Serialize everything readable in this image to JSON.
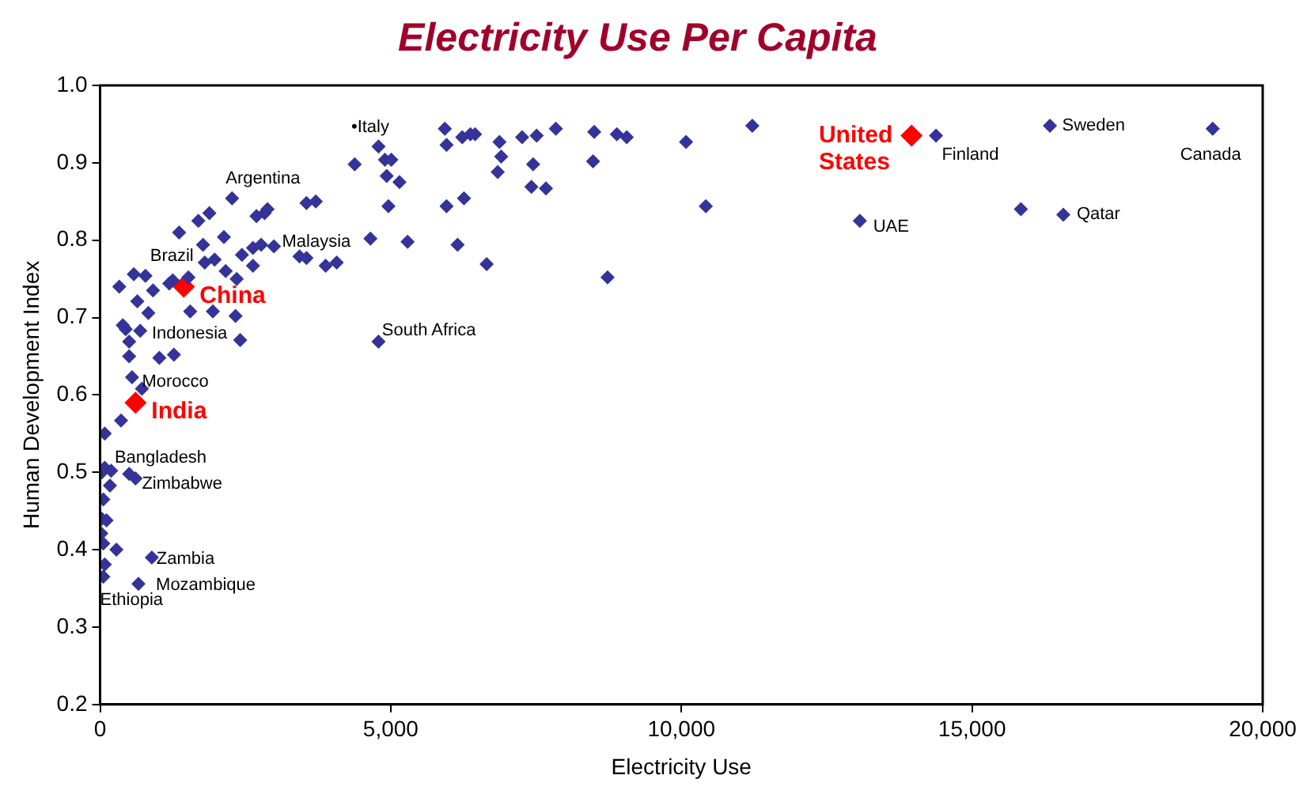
{
  "chart_data": {
    "type": "scatter",
    "title": "Electricity Use Per Capita",
    "xlabel": "Electricity Use",
    "ylabel": "Human Development Index",
    "xlim": [
      0,
      20000
    ],
    "xticks": [
      0,
      {
        "value": 5000,
        "label": "5,000"
      },
      {
        "value": 10000,
        "label": "10,000"
      },
      {
        "value": 15000,
        "label": "15,000"
      },
      {
        "value": 20000,
        "label": "20,000"
      }
    ],
    "ylim": [
      0.2,
      1
    ],
    "yticks": [
      0.2,
      0.3,
      0.4,
      0.5,
      0.6,
      0.7,
      0.8,
      0.9,
      {
        "value": 1,
        "label": "1.0"
      }
    ],
    "legend": false,
    "marker": "diamond",
    "series": [
      {
        "color": "#333399",
        "x": [
          5930,
          5960,
          6230,
          6370,
          6450,
          6870,
          6900,
          6840,
          7260,
          7510,
          7450,
          7420,
          7670,
          7840,
          8500,
          8480,
          8890,
          9060,
          10080,
          11220,
          10420,
          4380,
          4790,
          4900,
          5010,
          4930,
          5150,
          4960,
          5960,
          6260,
          4650,
          5290,
          6150,
          6650,
          8730,
          4070,
          2270,
          1880,
          1690,
          1360,
          2130,
          1770,
          2690,
          2830,
          2880,
          3550,
          3710,
          2440,
          2630,
          2770,
          2990,
          1970,
          1800,
          2160,
          2350,
          2630,
          3430,
          3550,
          3880,
          1520,
          1250,
          1190,
          780,
          580,
          330,
          910,
          640,
          830,
          1550,
          1940,
          2330,
          2410,
          390,
          440,
          690,
          500,
          500,
          1020,
          1270,
          550,
          720,
          80,
          360,
          30,
          80,
          190,
          170,
          500,
          610,
          55,
          30,
          110,
          20,
          55,
          280,
          80,
          55,
          890,
          660,
          14380,
          16340,
          19140,
          16570,
          15840,
          13070,
          4790
        ],
        "values": [
          0.944,
          0.923,
          0.933,
          0.937,
          0.937,
          0.927,
          0.908,
          0.888,
          0.933,
          0.935,
          0.898,
          0.869,
          0.867,
          0.944,
          0.94,
          0.902,
          0.937,
          0.933,
          0.927,
          0.948,
          0.844,
          0.898,
          0.921,
          0.904,
          0.904,
          0.883,
          0.875,
          0.844,
          0.844,
          0.854,
          0.802,
          0.798,
          0.794,
          0.769,
          0.752,
          0.771,
          0.854,
          0.835,
          0.825,
          0.81,
          0.804,
          0.794,
          0.831,
          0.835,
          0.84,
          0.848,
          0.85,
          0.781,
          0.79,
          0.794,
          0.792,
          0.775,
          0.771,
          0.76,
          0.75,
          0.767,
          0.779,
          0.777,
          0.767,
          0.752,
          0.748,
          0.744,
          0.754,
          0.756,
          0.74,
          0.735,
          0.721,
          0.706,
          0.708,
          0.708,
          0.702,
          0.671,
          0.69,
          0.685,
          0.683,
          0.669,
          0.65,
          0.648,
          0.652,
          0.623,
          0.608,
          0.55,
          0.567,
          0.5,
          0.506,
          0.502,
          0.483,
          0.498,
          0.492,
          0.465,
          0.44,
          0.438,
          0.421,
          0.408,
          0.4,
          0.381,
          0.365,
          0.39,
          0.356,
          0.935,
          0.948,
          0.944,
          0.833,
          0.84,
          0.825,
          0.669
        ]
      },
      {
        "color": "#ff0000",
        "x": [
          1440,
          610,
          13960
        ],
        "values": [
          0.74,
          0.59,
          0.935
        ],
        "value_labels": [
          "China",
          "India",
          "United States"
        ]
      }
    ],
    "annotations": [
      "•Italy",
      "Argentina",
      "Brazil",
      {
        "text": "Malaysia",
        "x": 3130,
        "y": 0.798
      },
      {
        "text": "Indonesia",
        "x": 890,
        "y": 0.679
      },
      {
        "text": "Morocco",
        "x": 720,
        "y": 0.617
      },
      {
        "text": "Bangladesh",
        "x": 250,
        "y": 0.519
      },
      {
        "text": "Zimbabwe",
        "x": 720,
        "y": 0.485
      },
      {
        "text": "Zambia",
        "x": 970,
        "y": 0.388
      },
      "Mozambique",
      "Ethiopia",
      {
        "text": "South Africa",
        "x": 4850,
        "y": 0.683
      },
      "Finland",
      {
        "text": "Sweden",
        "x": 16550,
        "y": 0.948
      },
      "Canada",
      {
        "text": "Qatar",
        "x": 16800,
        "y": 0.833
      },
      "UAE"
    ]
  }
}
